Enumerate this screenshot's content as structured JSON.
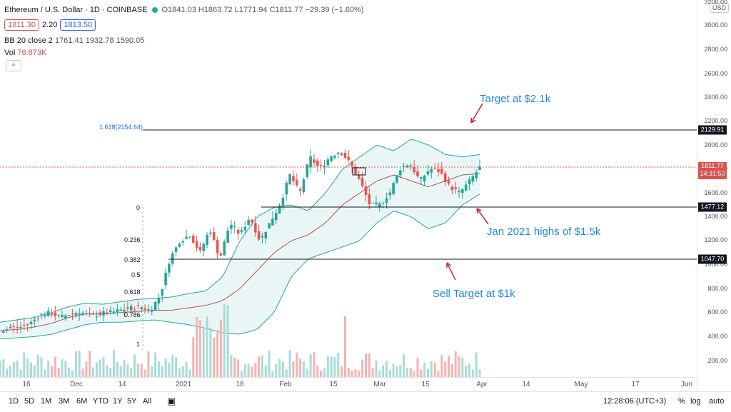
{
  "header": {
    "title": "Ethereum / U.S. Dollar · 1D · COINBASE",
    "ohlc": "O1841.03 H1863.72 L1771.94 C1811.77 −29.39 (−1.60%)",
    "sell_price": "1811.30",
    "spread": "2.20",
    "buy_price": "1813.50",
    "bb": "BB 20 close 2",
    "bb_values": "1761.41 1932.78 1590.05",
    "vol_label": "Vol",
    "vol_value": "76.873K",
    "collapse": "^",
    "currency": "USD"
  },
  "price_axis": {
    "ticks": [
      "3200.00",
      "3000.00",
      "2800.00",
      "2600.00",
      "2400.00",
      "2200.00",
      "2000.00",
      "1800.00",
      "1600.00",
      "1400.00",
      "1200.00",
      "1000.00",
      "800.00",
      "600.00",
      "400.00",
      "200.00"
    ],
    "tag_2129": "2129.91",
    "tag_1477": "1477.12",
    "tag_1047": "1047.70",
    "tag_last_price": "1811.77",
    "tag_countdown": "14:31:53"
  },
  "time_axis": {
    "ticks": [
      "16",
      "Dec",
      "14",
      "2021",
      "18",
      "Feb",
      "15",
      "Mar",
      "15",
      "Apr",
      "14",
      "May",
      "17",
      "Jun"
    ]
  },
  "annotations": {
    "target": "Target at $2.1k",
    "jan_highs": "Jan 2021 highs of $1.5k",
    "sell_target": "Sell Target at $1k",
    "fib_1618": "1.618(2154.64)",
    "fib_0": "0",
    "fib_0236": "0.236",
    "fib_0382": "0.382",
    "fib_05": "0.5",
    "fib_0618": "0.618",
    "fib_0786": "0.786",
    "fib_1": "1"
  },
  "toolbar": {
    "timeframes": [
      "1D",
      "5D",
      "1M",
      "3M",
      "6M",
      "YTD",
      "1Y",
      "5Y",
      "All"
    ],
    "clock": "12:28:06 (UTC+3)",
    "percent": "%",
    "log": "log",
    "auto": "auto"
  },
  "colors": {
    "up": "#26a69a",
    "down": "#ef5350",
    "band_fill": "#e0f2f1",
    "basis": "#b2554f",
    "annotation": "#1e88e5",
    "arrow": "#c62828"
  },
  "chart_data": {
    "type": "candlestick",
    "x_range": [
      "2020-11-06",
      "2021-06-10"
    ],
    "ylim": [
      0,
      3300
    ],
    "price_levels": [
      2129.91,
      1477.12,
      1047.7
    ],
    "last_close": 1811.77,
    "close_path": [
      450,
      470,
      480,
      510,
      580,
      600,
      560,
      590,
      610,
      570,
      590,
      600,
      620,
      640,
      650,
      620,
      740,
      1050,
      1200,
      1250,
      1100,
      1300,
      1050,
      1350,
      1250,
      1400,
      1200,
      1350,
      1500,
      1750,
      1600,
      1900,
      1800,
      1900,
      1950,
      1850,
      1700,
      1500,
      1500,
      1600,
      1800,
      1850,
      1700,
      1800,
      1780,
      1650,
      1600,
      1700,
      1812
    ],
    "bb_upper_path": [
      520,
      540,
      560,
      600,
      650,
      680,
      670,
      690,
      710,
      720,
      730,
      760,
      780,
      900,
      1200,
      1400,
      1480,
      1500,
      1450,
      1600,
      1800,
      1900,
      2000,
      1950,
      2050,
      2000,
      1920,
      1900,
      1920
    ],
    "bb_lower_path": [
      380,
      390,
      400,
      420,
      460,
      500,
      520,
      520,
      530,
      540,
      520,
      500,
      470,
      430,
      420,
      460,
      600,
      900,
      1050,
      1100,
      1150,
      1200,
      1350,
      1450,
      1400,
      1300,
      1350,
      1500,
      1590
    ],
    "bb_basis_path": [
      450,
      460,
      480,
      510,
      560,
      590,
      590,
      600,
      610,
      620,
      620,
      640,
      660,
      700,
      800,
      950,
      1100,
      1200,
      1250,
      1350,
      1500,
      1600,
      1700,
      1750,
      1700,
      1650,
      1700,
      1750,
      1761
    ]
  }
}
